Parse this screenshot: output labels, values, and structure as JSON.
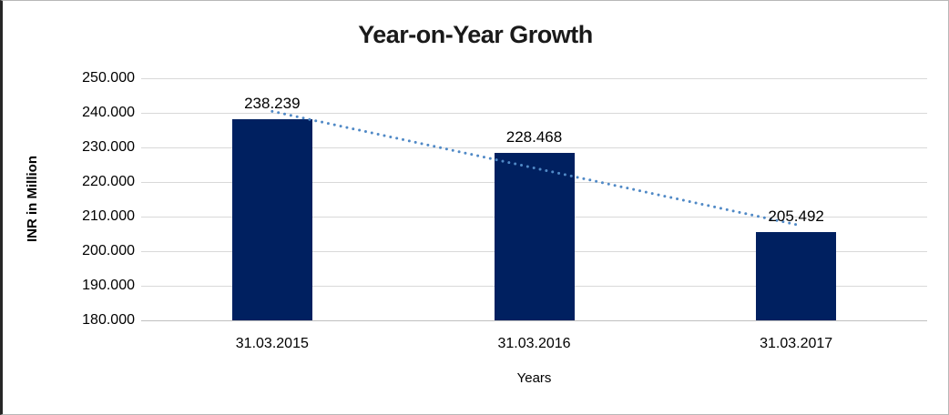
{
  "chart_data": {
    "type": "bar",
    "title": "Year-on-Year Growth",
    "xlabel": "Years",
    "ylabel": "INR in Million",
    "categories": [
      "31.03.2015",
      "31.03.2016",
      "31.03.2017"
    ],
    "values": [
      238.239,
      228.468,
      205.492
    ],
    "data_labels": [
      "238.239",
      "228.468",
      "205.492"
    ],
    "ylim": [
      180,
      250
    ],
    "ytick_values": [
      250,
      240,
      230,
      220,
      210,
      200,
      190,
      180
    ],
    "ytick_labels": [
      "250.000",
      "240.000",
      "230.000",
      "220.000",
      "210.000",
      "200.000",
      "190.000",
      "180.000"
    ],
    "grid": true,
    "legend": "none",
    "trendline": {
      "type": "linear",
      "style": "dotted",
      "fit_start_value": 240.44,
      "fit_end_value": 207.69
    },
    "colors": {
      "bar": "#002060",
      "trendline": "#5089C6",
      "gridline": "#D9D9D9",
      "axis_line": "#BFBFBF",
      "title_text": "#1A1A1A",
      "text": "#000000",
      "background": "#FFFFFF"
    }
  }
}
